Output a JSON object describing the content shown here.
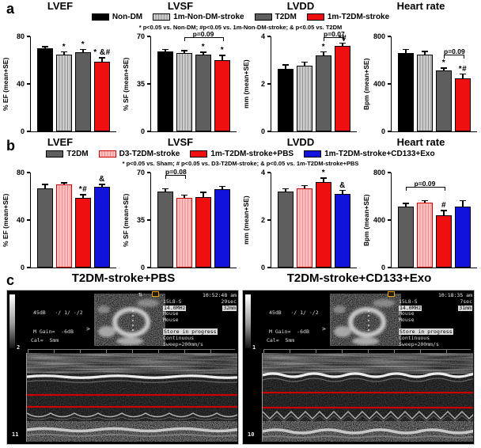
{
  "figure": {
    "panel_a": {
      "label": "a",
      "legend": [
        {
          "label": "Non-DM",
          "color": "#000000",
          "pattern": "solid",
          "border": "#000000"
        },
        {
          "label": "1m-Non-DM-stroke",
          "color": "#cccccc",
          "stripe": "#8f8f8f",
          "pattern": "stripes",
          "border": "#000000"
        },
        {
          "label": "T2DM",
          "color": "#5e5e5e",
          "pattern": "solid",
          "border": "#000000"
        },
        {
          "label": "1m-T2DM-stroke",
          "color": "#ee1010",
          "pattern": "solid",
          "border": "#000000"
        }
      ],
      "note": "* p<0.05 vs. Non-DM;  #p<0.05 vs. 1m-Non-DM-stroke;  & p<0.05 vs. T2DM"
    },
    "panel_b": {
      "label": "b",
      "legend": [
        {
          "label": "T2DM",
          "color": "#5e5e5e",
          "pattern": "solid",
          "border": "#000000"
        },
        {
          "label": "D3-T2DM-stroke",
          "color": "#f9c0c0",
          "stripe": "#ef8a8a",
          "pattern": "stripes",
          "border": "#d40000"
        },
        {
          "label": "1m-T2DM-stroke+PBS",
          "color": "#ee1010",
          "pattern": "solid",
          "border": "#000000"
        },
        {
          "label": "1m-T2DM-stroke+CD133+Exo",
          "color": "#1212dd",
          "pattern": "solid",
          "border": "#000000"
        }
      ],
      "note": "* p<0.05 vs. Sham; # p<0.05 vs. D3-T2DM-stroke; & p<0.05 vs. 1m-T2DM-stroke+PBS"
    },
    "panel_c": {
      "label": "c",
      "images": [
        {
          "title": "T2DM-stroke+PBS",
          "gain_line1": "45dB   ·/ 1/ ·/2",
          "gain_line2": "M Gain=  -6dB",
          "time": "10:52:48 am",
          "probe": "15L8-S",
          "elapsed": "29sec",
          "freq": "14.0MHz",
          "depth": "32mm",
          "subject1": "Mouse",
          "subject2": "Mouse",
          "status": "Store in progress",
          "mode": "Continuous",
          "sweep": "Sweep=200mm/s",
          "cal": "Cal=  5mm",
          "marker_top": "2",
          "marker_bottom": "11"
        },
        {
          "title": "T2DM-stroke+CD133+Exo",
          "gain_line1": "45dB   ·/ 1/ ·/2",
          "gain_line2": "M Gain=  -6dB",
          "time": "10:18:35 am",
          "probe": "15L8-S",
          "elapsed": "7sec",
          "freq": "14.0MHz",
          "depth": "31mm",
          "subject1": "Mouse",
          "subject2": "Mouse",
          "status": "Store in progress",
          "mode": "Continuous",
          "sweep": "Sweep=200mm/s",
          "cal": "Cal=  5mm",
          "marker_top": "1",
          "marker_bottom": "10"
        }
      ]
    }
  },
  "chart_data": [
    {
      "panel": "a",
      "type": "bar",
      "title": "LVEF",
      "ylabel": "% EF (mean+SE)",
      "ylim": [
        0,
        80
      ],
      "yticks": [
        0,
        40,
        80
      ],
      "categories": [
        "Non-DM",
        "1m-Non-DM-stroke",
        "T2DM",
        "1m-T2DM-stroke"
      ],
      "values": [
        70,
        65,
        67,
        59
      ],
      "errors": [
        1,
        1.5,
        1.5,
        2.5
      ],
      "annotations": [
        "",
        "*",
        "*",
        "* &#"
      ],
      "brackets": []
    },
    {
      "panel": "a",
      "type": "bar",
      "title": "LVSF",
      "ylabel": "% SF (mean+SE)",
      "ylim": [
        0,
        70
      ],
      "yticks": [
        0,
        35,
        70
      ],
      "categories": [
        "Non-DM",
        "1m-Non-DM-stroke",
        "T2DM",
        "1m-T2DM-stroke"
      ],
      "values": [
        59,
        58,
        56.5,
        52.5
      ],
      "errors": [
        1,
        1,
        1.5,
        3
      ],
      "annotations": [
        "",
        "",
        "*",
        "*"
      ],
      "brackets": [
        {
          "label": "p=0.09",
          "from": 2,
          "to": 4
        }
      ]
    },
    {
      "panel": "a",
      "type": "bar",
      "title": "LVDD",
      "ylabel": "mm (mean+SE)",
      "ylim": [
        0,
        4
      ],
      "yticks": [
        0,
        2,
        4
      ],
      "categories": [
        "Non-DM",
        "1m-Non-DM-stroke",
        "T2DM",
        "1m-T2DM-stroke"
      ],
      "values": [
        2.65,
        2.78,
        3.2,
        3.6
      ],
      "errors": [
        0.13,
        0.12,
        0.12,
        0.1
      ],
      "annotations": [
        "",
        "",
        "*",
        "*#"
      ],
      "brackets": [
        {
          "label": "p=0.07",
          "from": 3,
          "to": 4
        }
      ]
    },
    {
      "panel": "a",
      "type": "bar",
      "title": "Heart rate",
      "ylabel": "Bpm (mean+SE)",
      "ylim": [
        0,
        800
      ],
      "yticks": [
        0,
        400,
        800
      ],
      "categories": [
        "Non-DM",
        "1m-Non-DM-stroke",
        "T2DM",
        "1m-T2DM-stroke"
      ],
      "values": [
        660,
        650,
        515,
        445
      ],
      "errors": [
        25,
        20,
        15,
        35
      ],
      "annotations": [
        "",
        "",
        "*",
        "*#"
      ],
      "brackets": [
        {
          "label": "p=0.09",
          "from": 3,
          "to": 4
        }
      ]
    },
    {
      "panel": "b",
      "type": "bar",
      "title": "LVEF",
      "ylabel": "% EF (mean+SE)",
      "ylim": [
        0,
        80
      ],
      "yticks": [
        0,
        40,
        80
      ],
      "categories": [
        "T2DM",
        "D3-T2DM-stroke",
        "1m-T2DM-stroke+PBS",
        "1m-T2DM-stroke+CD133+Exo"
      ],
      "values": [
        67,
        70,
        58.5,
        68
      ],
      "errors": [
        2.5,
        1,
        2.5,
        1.5
      ],
      "annotations": [
        "",
        "",
        "*#",
        "&"
      ],
      "brackets": []
    },
    {
      "panel": "b",
      "type": "bar",
      "title": "LVSF",
      "ylabel": "% SF (mean+SE)",
      "ylim": [
        0,
        70
      ],
      "yticks": [
        0,
        35,
        70
      ],
      "categories": [
        "T2DM",
        "D3-T2DM-stroke",
        "1m-T2DM-stroke+PBS",
        "1m-T2DM-stroke+CD133+Exo"
      ],
      "values": [
        56,
        51.5,
        52,
        58
      ],
      "errors": [
        1.5,
        1.5,
        3,
        1.5
      ],
      "annotations": [
        "",
        "",
        "",
        ""
      ],
      "brackets": [
        {
          "label": "p=0.08",
          "from": 1,
          "to": 2
        }
      ]
    },
    {
      "panel": "b",
      "type": "bar",
      "title": "LVDD",
      "ylabel": "mm (mean+SE)",
      "ylim": [
        0,
        4
      ],
      "yticks": [
        0,
        2,
        4
      ],
      "categories": [
        "T2DM",
        "D3-T2DM-stroke",
        "1m-T2DM-stroke+PBS",
        "1m-T2DM-stroke+CD133+Exo"
      ],
      "values": [
        3.2,
        3.35,
        3.6,
        3.1
      ],
      "errors": [
        0.1,
        0.08,
        0.15,
        0.12
      ],
      "annotations": [
        "",
        "",
        "*",
        "&"
      ],
      "brackets": []
    },
    {
      "panel": "b",
      "type": "bar",
      "title": "Heart rate",
      "ylabel": "Bpm (mean+SE)",
      "ylim": [
        0,
        800
      ],
      "yticks": [
        0,
        400,
        800
      ],
      "categories": [
        "T2DM",
        "D3-T2DM-stroke",
        "1m-T2DM-stroke+PBS",
        "1m-T2DM-stroke+CD133+Exo"
      ],
      "values": [
        515,
        545,
        440,
        515
      ],
      "errors": [
        20,
        15,
        35,
        45
      ],
      "annotations": [
        "",
        "",
        "#",
        ""
      ],
      "brackets": [
        {
          "label": "p=0.09",
          "from": 1,
          "to": 3
        }
      ]
    }
  ]
}
